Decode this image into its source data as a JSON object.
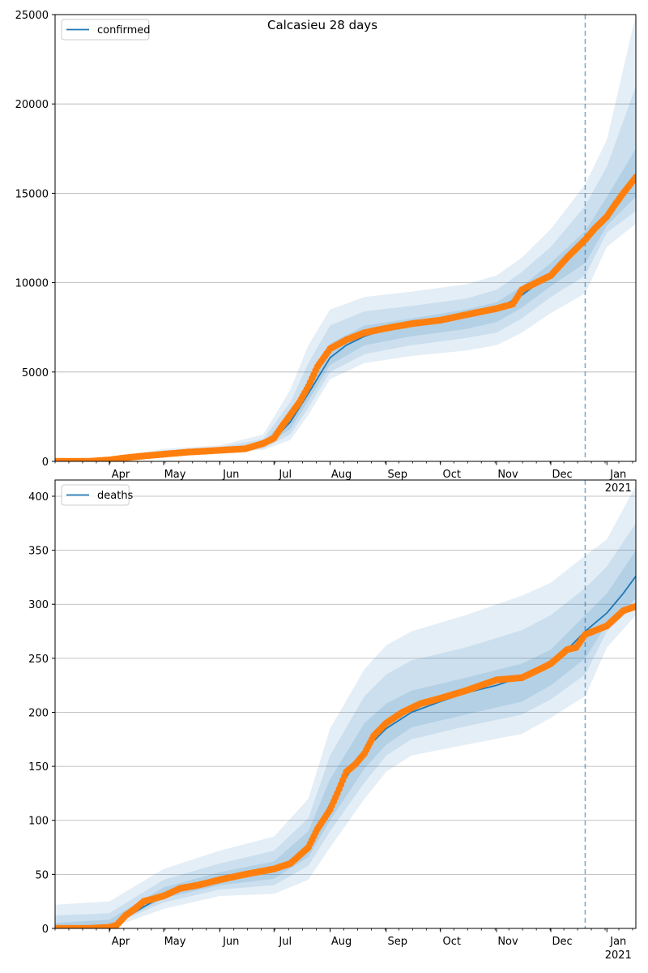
{
  "chart_data": [
    {
      "type": "line",
      "title": "Calcasieu 28 days",
      "xlabel": "",
      "ylabel": "",
      "ylim": [
        0,
        25000
      ],
      "yticks": [
        0,
        5000,
        10000,
        15000,
        20000,
        25000
      ],
      "x_range": [
        "2020-03-02",
        "2021-01-17"
      ],
      "x_tick_labels": [
        "Apr",
        "May",
        "Jun",
        "Jul",
        "Aug",
        "Sep",
        "Oct",
        "Nov",
        "Dec",
        "Jan"
      ],
      "x_tick_dates": [
        "2020-04-01",
        "2020-05-01",
        "2020-06-01",
        "2020-07-01",
        "2020-08-01",
        "2020-09-01",
        "2020-10-01",
        "2020-11-01",
        "2020-12-01",
        "2021-01-01"
      ],
      "x_year_label": "2021",
      "grid": "horizontal",
      "legend_position": "top-left",
      "forecast_start": "2020-12-20",
      "colors": {
        "line": "#1f77b4",
        "band": "#1f77b4",
        "observed": "#ff7f0e"
      },
      "series": [
        {
          "name": "confirmed",
          "kind": "model-median",
          "x": [
            "2020-03-02",
            "2020-03-20",
            "2020-04-01",
            "2020-04-15",
            "2020-05-01",
            "2020-05-15",
            "2020-06-01",
            "2020-06-15",
            "2020-06-25",
            "2020-07-01",
            "2020-07-10",
            "2020-07-20",
            "2020-08-01",
            "2020-08-10",
            "2020-08-20",
            "2020-09-01",
            "2020-09-15",
            "2020-10-01",
            "2020-10-15",
            "2020-11-01",
            "2020-11-15",
            "2020-12-01",
            "2020-12-15",
            "2021-01-01",
            "2021-01-17"
          ],
          "values": [
            0,
            20,
            80,
            300,
            450,
            550,
            620,
            720,
            900,
            1250,
            2200,
            3800,
            5800,
            6500,
            7000,
            7400,
            7650,
            7900,
            8150,
            8500,
            9300,
            10500,
            11800,
            13600,
            15800
          ]
        },
        {
          "name": "",
          "kind": "observed",
          "x": [
            "2020-03-02",
            "2020-03-20",
            "2020-04-01",
            "2020-04-10",
            "2020-04-20",
            "2020-05-01",
            "2020-05-15",
            "2020-06-01",
            "2020-06-15",
            "2020-06-25",
            "2020-07-01",
            "2020-07-05",
            "2020-07-10",
            "2020-07-15",
            "2020-07-20",
            "2020-07-25",
            "2020-08-01",
            "2020-08-10",
            "2020-08-20",
            "2020-09-01",
            "2020-09-15",
            "2020-10-01",
            "2020-10-15",
            "2020-11-01",
            "2020-11-10",
            "2020-11-15",
            "2020-11-25",
            "2020-12-01",
            "2020-12-10",
            "2020-12-20",
            "2020-12-25",
            "2021-01-01",
            "2021-01-05",
            "2021-01-10",
            "2021-01-17"
          ],
          "values": [
            0,
            0,
            80,
            200,
            300,
            400,
            520,
            620,
            700,
            1000,
            1300,
            1900,
            2600,
            3300,
            4200,
            5300,
            6300,
            6800,
            7200,
            7450,
            7700,
            7900,
            8200,
            8550,
            8800,
            9600,
            10100,
            10400,
            11400,
            12400,
            13000,
            13700,
            14300,
            15000,
            15900
          ]
        }
      ],
      "bands": [
        {
          "x": [
            "2020-03-02",
            "2020-04-01",
            "2020-05-01",
            "2020-06-01",
            "2020-06-25",
            "2020-07-10",
            "2020-07-20",
            "2020-08-01",
            "2020-08-20",
            "2020-09-15",
            "2020-10-15",
            "2020-11-01",
            "2020-11-15",
            "2020-12-01",
            "2020-12-20",
            "2021-01-01",
            "2021-01-17"
          ],
          "lower": [
            0,
            30,
            250,
            450,
            650,
            1200,
            2600,
            4600,
            5500,
            5900,
            6200,
            6500,
            7200,
            8300,
            9400,
            12000,
            13300
          ],
          "upper": [
            0,
            200,
            700,
            900,
            1500,
            4000,
            6500,
            8500,
            9200,
            9500,
            9900,
            10400,
            11400,
            13000,
            15500,
            18000,
            25000
          ]
        },
        {
          "x": [
            "2020-03-02",
            "2020-04-01",
            "2020-05-01",
            "2020-06-01",
            "2020-06-25",
            "2020-07-10",
            "2020-07-20",
            "2020-08-01",
            "2020-08-20",
            "2020-09-15",
            "2020-10-15",
            "2020-11-01",
            "2020-11-15",
            "2020-12-01",
            "2020-12-20",
            "2021-01-01",
            "2021-01-17"
          ],
          "lower": [
            0,
            45,
            320,
            510,
            720,
            1500,
            3000,
            5000,
            6000,
            6500,
            6900,
            7200,
            8000,
            9200,
            10400,
            12800,
            14000
          ],
          "upper": [
            0,
            150,
            600,
            800,
            1250,
            3300,
            5500,
            7600,
            8400,
            8700,
            9100,
            9600,
            10600,
            12000,
            14300,
            16500,
            21000
          ]
        },
        {
          "x": [
            "2020-03-02",
            "2020-04-01",
            "2020-05-01",
            "2020-06-01",
            "2020-06-25",
            "2020-07-10",
            "2020-07-20",
            "2020-08-01",
            "2020-08-20",
            "2020-09-15",
            "2020-10-15",
            "2020-11-01",
            "2020-11-15",
            "2020-12-01",
            "2020-12-20",
            "2021-01-01",
            "2021-01-17"
          ],
          "lower": [
            0,
            60,
            380,
            560,
            800,
            1800,
            3400,
            5400,
            6500,
            7000,
            7400,
            7800,
            8600,
            9800,
            11100,
            13200,
            14800
          ],
          "upper": [
            0,
            110,
            520,
            700,
            1050,
            2700,
            4500,
            6600,
            7600,
            8000,
            8500,
            8900,
            9800,
            11100,
            12900,
            14800,
            17500
          ]
        }
      ]
    },
    {
      "type": "line",
      "title": "",
      "xlabel": "",
      "ylabel": "",
      "ylim": [
        0,
        415
      ],
      "yticks": [
        0,
        50,
        100,
        150,
        200,
        250,
        300,
        350,
        400
      ],
      "x_range": [
        "2020-03-02",
        "2021-01-17"
      ],
      "x_tick_labels": [
        "Apr",
        "May",
        "Jun",
        "Jul",
        "Aug",
        "Sep",
        "Oct",
        "Nov",
        "Dec",
        "Jan"
      ],
      "x_tick_dates": [
        "2020-04-01",
        "2020-05-01",
        "2020-06-01",
        "2020-07-01",
        "2020-08-01",
        "2020-09-01",
        "2020-10-01",
        "2020-11-01",
        "2020-12-01",
        "2021-01-01"
      ],
      "x_year_label": "2021",
      "grid": "horizontal",
      "legend_position": "top-left",
      "forecast_start": "2020-12-20",
      "colors": {
        "line": "#1f77b4",
        "band": "#1f77b4",
        "observed": "#ff7f0e"
      },
      "series": [
        {
          "name": "deaths",
          "kind": "model-median",
          "x": [
            "2020-03-02",
            "2020-03-20",
            "2020-04-01",
            "2020-04-10",
            "2020-04-20",
            "2020-05-01",
            "2020-05-15",
            "2020-06-01",
            "2020-06-15",
            "2020-07-01",
            "2020-07-10",
            "2020-07-20",
            "2020-08-01",
            "2020-08-10",
            "2020-08-20",
            "2020-09-01",
            "2020-09-15",
            "2020-10-01",
            "2020-10-15",
            "2020-11-01",
            "2020-11-15",
            "2020-12-01",
            "2020-12-10",
            "2020-12-20",
            "2021-01-01",
            "2021-01-10",
            "2021-01-17"
          ],
          "values": [
            0,
            0,
            2,
            10,
            20,
            30,
            38,
            45,
            49,
            53,
            60,
            78,
            115,
            140,
            165,
            185,
            200,
            210,
            218,
            225,
            233,
            245,
            258,
            275,
            292,
            310,
            326
          ]
        },
        {
          "name": "",
          "kind": "observed",
          "x": [
            "2020-03-02",
            "2020-03-20",
            "2020-04-01",
            "2020-04-05",
            "2020-04-10",
            "2020-04-15",
            "2020-04-20",
            "2020-05-01",
            "2020-05-10",
            "2020-05-20",
            "2020-06-01",
            "2020-06-15",
            "2020-07-01",
            "2020-07-10",
            "2020-07-20",
            "2020-07-25",
            "2020-08-01",
            "2020-08-05",
            "2020-08-10",
            "2020-08-15",
            "2020-08-20",
            "2020-08-25",
            "2020-09-01",
            "2020-09-10",
            "2020-09-20",
            "2020-10-01",
            "2020-10-15",
            "2020-11-01",
            "2020-11-15",
            "2020-11-25",
            "2020-12-01",
            "2020-12-10",
            "2020-12-15",
            "2020-12-20",
            "2021-01-01",
            "2021-01-10",
            "2021-01-17"
          ],
          "values": [
            0,
            0,
            1,
            3,
            12,
            18,
            25,
            30,
            37,
            40,
            45,
            50,
            55,
            60,
            75,
            92,
            110,
            125,
            145,
            152,
            162,
            178,
            190,
            200,
            208,
            213,
            220,
            230,
            232,
            240,
            245,
            258,
            260,
            272,
            280,
            294,
            298
          ]
        }
      ],
      "bands": [
        {
          "x": [
            "2020-03-02",
            "2020-04-01",
            "2020-05-01",
            "2020-06-01",
            "2020-07-01",
            "2020-07-20",
            "2020-08-01",
            "2020-08-20",
            "2020-09-01",
            "2020-09-15",
            "2020-10-15",
            "2020-11-15",
            "2020-12-01",
            "2020-12-20",
            "2021-01-01",
            "2021-01-17"
          ],
          "lower": [
            0,
            0,
            18,
            30,
            32,
            45,
            75,
            120,
            145,
            160,
            170,
            180,
            195,
            215,
            260,
            290
          ],
          "upper": [
            22,
            25,
            55,
            72,
            85,
            120,
            185,
            240,
            262,
            275,
            290,
            308,
            320,
            345,
            360,
            410
          ]
        },
        {
          "x": [
            "2020-03-02",
            "2020-04-01",
            "2020-05-01",
            "2020-06-01",
            "2020-07-01",
            "2020-07-20",
            "2020-08-01",
            "2020-08-20",
            "2020-09-01",
            "2020-09-15",
            "2020-10-15",
            "2020-11-15",
            "2020-12-01",
            "2020-12-20",
            "2021-01-01",
            "2021-01-17"
          ],
          "lower": [
            0,
            2,
            24,
            36,
            40,
            58,
            90,
            135,
            160,
            175,
            187,
            198,
            212,
            235,
            275,
            300
          ],
          "upper": [
            12,
            14,
            45,
            60,
            72,
            102,
            160,
            215,
            235,
            248,
            260,
            276,
            290,
            315,
            335,
            375
          ]
        },
        {
          "x": [
            "2020-03-02",
            "2020-04-01",
            "2020-05-01",
            "2020-06-01",
            "2020-07-01",
            "2020-07-20",
            "2020-08-01",
            "2020-08-20",
            "2020-09-01",
            "2020-09-15",
            "2020-10-15",
            "2020-11-15",
            "2020-12-01",
            "2020-12-20",
            "2021-01-01",
            "2021-01-17"
          ],
          "lower": [
            0,
            1,
            28,
            40,
            46,
            66,
            100,
            148,
            170,
            186,
            198,
            210,
            225,
            250,
            282,
            305
          ],
          "upper": [
            5,
            8,
            38,
            52,
            62,
            90,
            138,
            190,
            208,
            220,
            232,
            245,
            258,
            290,
            310,
            350
          ]
        }
      ]
    }
  ]
}
